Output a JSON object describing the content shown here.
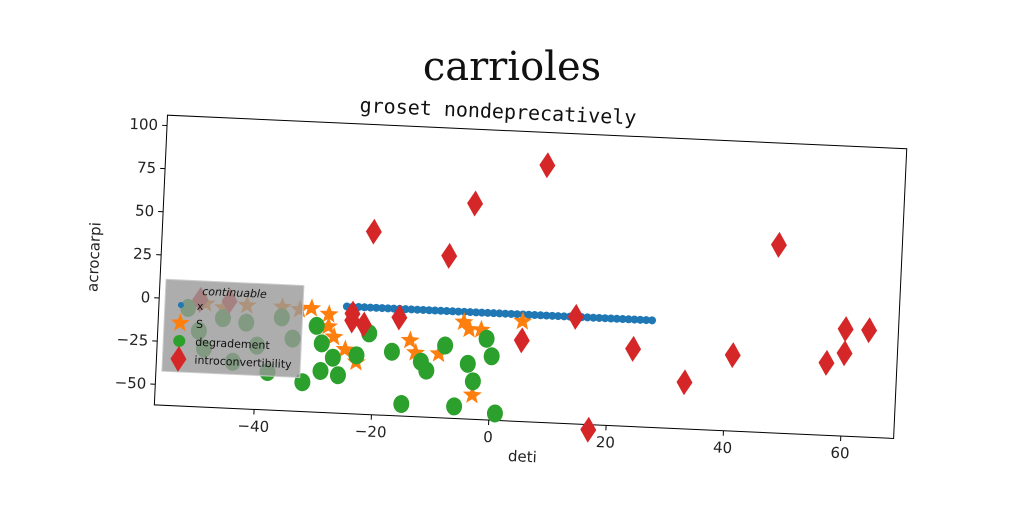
{
  "page_title": "carrioles",
  "chart_data": {
    "type": "scatter",
    "title": "groset nondeprecatively",
    "xlabel": "deti",
    "ylabel": "acrocarpi",
    "xlim": [
      -57,
      69
    ],
    "ylim": [
      -62,
      106
    ],
    "xticks": [
      -40,
      -20,
      0,
      20,
      40,
      60
    ],
    "yticks": [
      -50,
      -25,
      0,
      25,
      50,
      75,
      100
    ],
    "grid": false,
    "legend": {
      "title": "continuable",
      "position": "lower-left"
    },
    "series": [
      {
        "name": "x",
        "marker": "circle-small",
        "color": "#1f77b4",
        "x": [
          -25,
          -24,
          -23,
          -22,
          -21,
          -20,
          -19,
          -18,
          -17,
          -16,
          -15,
          -14,
          -13,
          -12,
          -11,
          -10,
          -9,
          -8,
          -7,
          -6,
          -5,
          -4,
          -3,
          -2,
          -1,
          0,
          1,
          2,
          3,
          4,
          5,
          6,
          7,
          8,
          9,
          10,
          11,
          12,
          13,
          14,
          15,
          16,
          17,
          18,
          19,
          20,
          21,
          22,
          23,
          24,
          25,
          26,
          27
        ],
        "y": [
          0,
          0,
          0,
          0,
          0,
          0,
          0,
          0,
          0,
          0,
          0,
          0,
          0,
          0,
          0,
          0,
          0,
          0,
          0,
          0,
          0,
          0,
          0,
          0,
          0,
          0,
          0,
          0,
          0,
          0,
          0,
          0,
          0,
          0,
          0,
          0,
          0,
          0,
          0,
          0,
          0,
          0,
          0,
          0,
          0,
          0,
          0,
          0,
          0,
          0,
          0,
          0,
          0
        ]
      },
      {
        "name": "S",
        "marker": "star",
        "color": "#ff7f0e",
        "x": [
          -49,
          -46,
          -42,
          -36,
          -33,
          -31,
          -28,
          -28,
          -27,
          -25,
          -23,
          -14,
          -13,
          -9,
          -5,
          -4,
          -2,
          -3,
          5
        ],
        "y": [
          -2,
          -4,
          -2,
          -2,
          -3,
          -2,
          -5,
          -12,
          -18,
          -25,
          -32,
          -18,
          -25,
          -25,
          -6,
          -10,
          -10,
          -48,
          -4
        ]
      },
      {
        "name": "degradement",
        "marker": "circle",
        "color": "#2ca02c",
        "x": [
          -52,
          -50,
          -49,
          -46,
          -44,
          -42,
          -40,
          -38,
          -36,
          -34,
          -32,
          -30,
          -29,
          -29,
          -27,
          -26,
          -23,
          -21,
          -17,
          -15,
          -12,
          -11,
          -8,
          -6,
          -4,
          -3,
          -1,
          0,
          1
        ],
        "y": [
          -5,
          -18,
          -28,
          -10,
          -35,
          -12,
          -25,
          -40,
          -8,
          -20,
          -45,
          -12,
          -22,
          -38,
          -30,
          -40,
          -28,
          -15,
          -25,
          -55,
          -30,
          -35,
          -20,
          -55,
          -30,
          -40,
          -15,
          -25,
          -58
        ]
      },
      {
        "name": "introconvertibility",
        "marker": "diamond",
        "color": "#d62728",
        "x": [
          -50,
          -45,
          -24,
          -24,
          -22,
          -21,
          -16,
          -8,
          -4,
          5,
          8,
          14,
          17,
          24,
          33,
          41,
          48,
          57,
          60,
          60,
          64
        ],
        "y": [
          0,
          0,
          -4,
          -8,
          -10,
          44,
          -5,
          32,
          63,
          -15,
          87,
          0,
          -65,
          -17,
          -35,
          -18,
          47,
          -20,
          -14,
          0,
          0
        ]
      }
    ]
  }
}
